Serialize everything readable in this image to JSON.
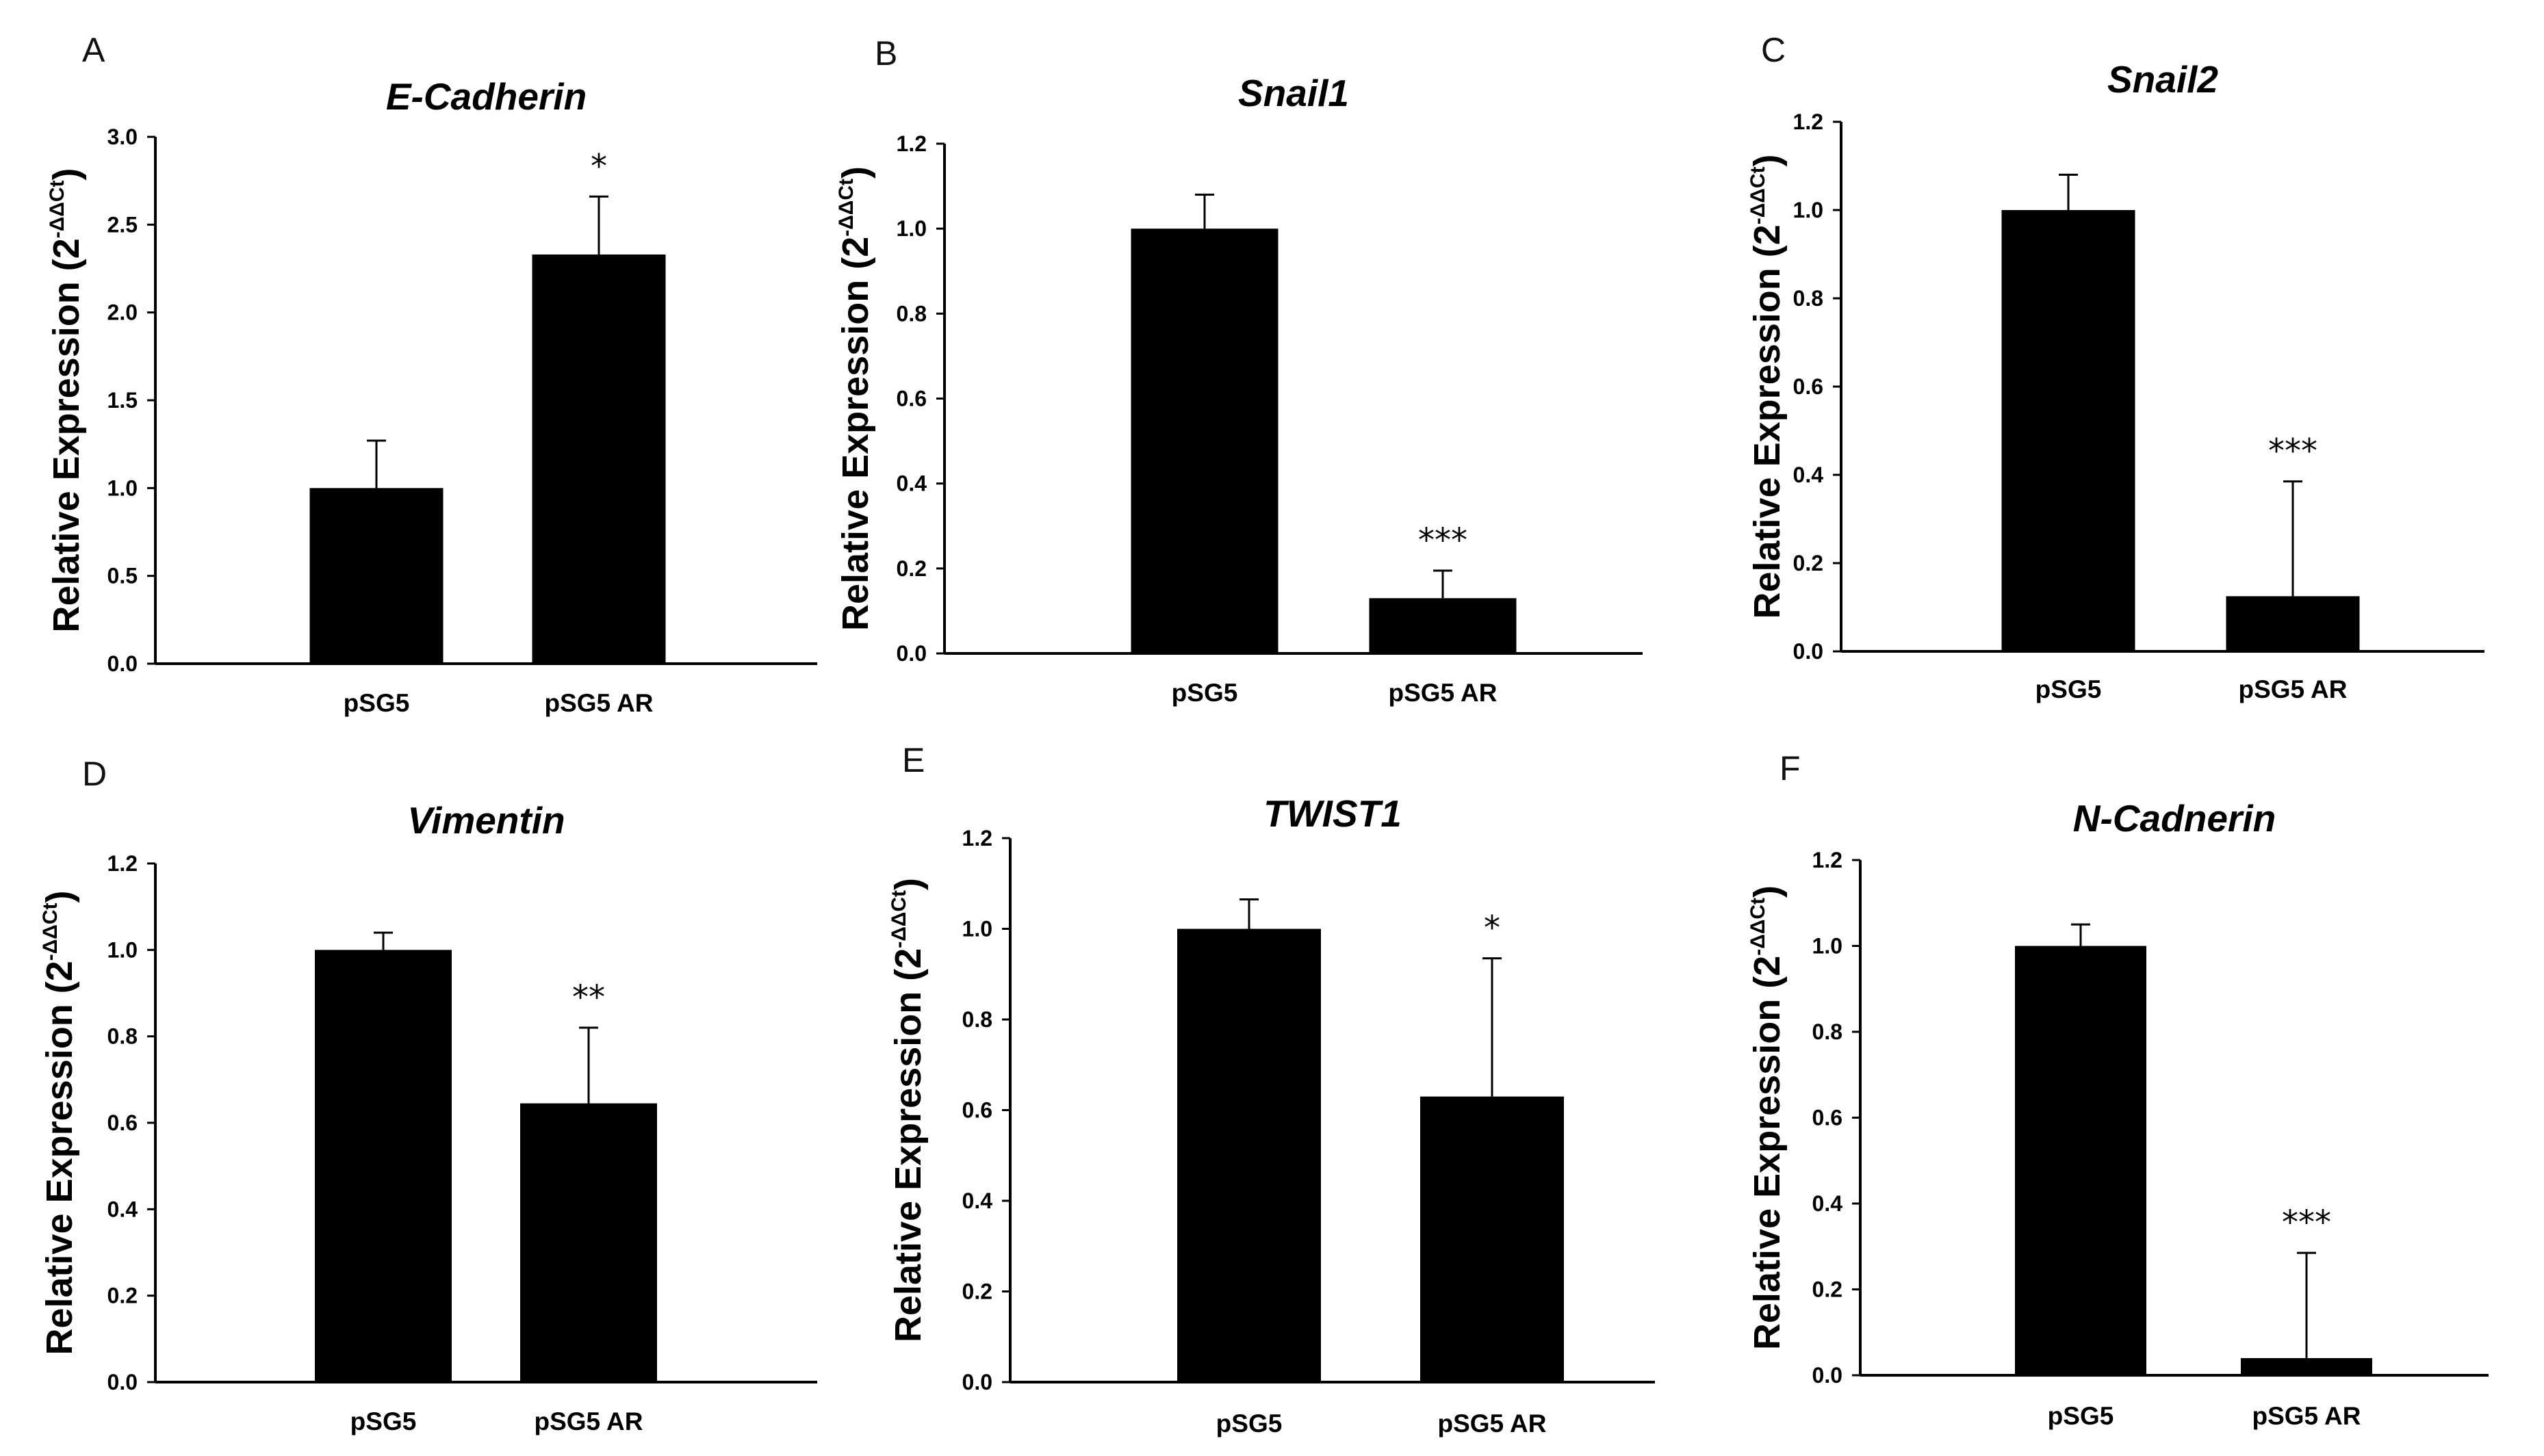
{
  "figure": {
    "ylabel_text": "Relative Expression (2",
    "ylabel_superscript": "-ΔΔCt",
    "ylabel_close": ")"
  },
  "chart_data": [
    {
      "panel": "A",
      "type": "bar",
      "title": "E-Cadherin",
      "categories": [
        "pSG5",
        "pSG5 AR"
      ],
      "values": [
        1.0,
        2.33
      ],
      "errors": [
        0.27,
        0.33
      ],
      "significance": [
        "",
        "*"
      ],
      "ylim": [
        0,
        3.0
      ],
      "yticks": [
        0,
        0.5,
        1.0,
        1.5,
        2.0,
        2.5,
        3.0
      ],
      "ytick_labels": [
        "0.0",
        "0.5",
        "1.0",
        "1.5",
        "2.0",
        "2.5",
        "3.0"
      ]
    },
    {
      "panel": "B",
      "type": "bar",
      "title": "Snail1",
      "categories": [
        "pSG5",
        "pSG5 AR"
      ],
      "values": [
        1.0,
        0.13
      ],
      "errors": [
        0.08,
        0.065
      ],
      "significance": [
        "",
        "***"
      ],
      "ylim": [
        0,
        1.2
      ],
      "yticks": [
        0,
        0.2,
        0.4,
        0.6,
        0.8,
        1.0,
        1.2
      ],
      "ytick_labels": [
        "0.0",
        "0.2",
        "0.4",
        "0.6",
        "0.8",
        "1.0",
        "1.2"
      ]
    },
    {
      "panel": "C",
      "type": "bar",
      "title": "Snail2",
      "categories": [
        "pSG5",
        "pSG5 AR"
      ],
      "values": [
        1.0,
        0.125
      ],
      "errors": [
        0.08,
        0.26
      ],
      "significance": [
        "",
        "***"
      ],
      "ylim": [
        0,
        1.2
      ],
      "yticks": [
        0,
        0.2,
        0.4,
        0.6,
        0.8,
        1.0,
        1.2
      ],
      "ytick_labels": [
        "0.0",
        "0.2",
        "0.4",
        "0.6",
        "0.8",
        "1.0",
        "1.2"
      ]
    },
    {
      "panel": "D",
      "type": "bar",
      "title": "Vimentin",
      "categories": [
        "pSG5",
        "pSG5 AR"
      ],
      "values": [
        1.0,
        0.645
      ],
      "errors": [
        0.04,
        0.175
      ],
      "significance": [
        "",
        "**"
      ],
      "ylim": [
        0,
        1.2
      ],
      "yticks": [
        0,
        0.2,
        0.4,
        0.6,
        0.8,
        1.0,
        1.2
      ],
      "ytick_labels": [
        "0.0",
        "0.2",
        "0.4",
        "0.6",
        "0.8",
        "1.0",
        "1.2"
      ]
    },
    {
      "panel": "E",
      "type": "bar",
      "title": "TWIST1",
      "categories": [
        "pSG5",
        "pSG5 AR"
      ],
      "values": [
        1.0,
        0.63
      ],
      "errors": [
        0.065,
        0.305
      ],
      "significance": [
        "",
        "*"
      ],
      "ylim": [
        0,
        1.2
      ],
      "yticks": [
        0,
        0.2,
        0.4,
        0.6,
        0.8,
        1.0,
        1.2
      ],
      "ytick_labels": [
        "0.0",
        "0.2",
        "0.4",
        "0.6",
        "0.8",
        "1.0",
        "1.2"
      ]
    },
    {
      "panel": "F",
      "type": "bar",
      "title": "N-Cadnerin",
      "categories": [
        "pSG5",
        "pSG5 AR"
      ],
      "values": [
        1.0,
        0.04
      ],
      "errors": [
        0.05,
        0.245
      ],
      "significance": [
        "",
        "***"
      ],
      "ylim": [
        0,
        1.2
      ],
      "yticks": [
        0,
        0.2,
        0.4,
        0.6,
        0.8,
        1.0,
        1.2
      ],
      "ytick_labels": [
        "0.0",
        "0.2",
        "0.4",
        "0.6",
        "0.8",
        "1.0",
        "1.2"
      ]
    }
  ]
}
